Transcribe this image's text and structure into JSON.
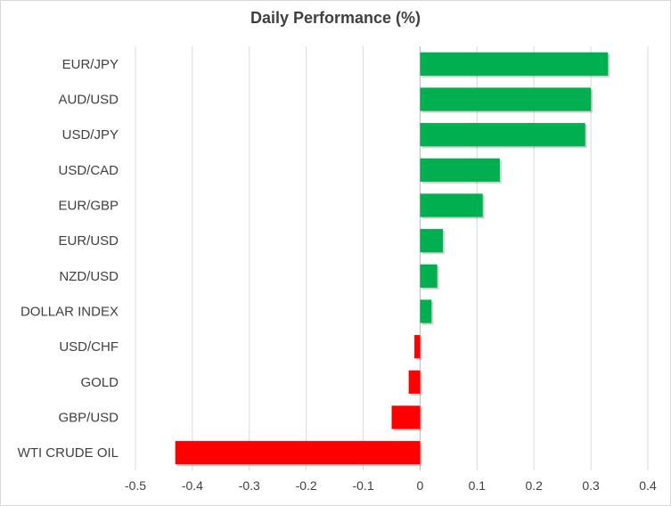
{
  "chart_data": {
    "type": "bar",
    "orientation": "horizontal",
    "title": "Daily Performance (%)",
    "xlabel": "",
    "ylabel": "",
    "categories": [
      "EUR/JPY",
      "AUD/USD",
      "USD/JPY",
      "USD/CAD",
      "EUR/GBP",
      "EUR/USD",
      "NZD/USD",
      "DOLLAR INDEX",
      "USD/CHF",
      "GOLD",
      "GBP/USD",
      "WTI CRUDE OIL"
    ],
    "values": [
      0.33,
      0.3,
      0.29,
      0.14,
      0.11,
      0.04,
      0.03,
      0.02,
      -0.01,
      -0.02,
      -0.05,
      -0.43
    ],
    "xlim": [
      -0.5,
      0.4
    ],
    "x_ticks": [
      "-0.5",
      "-0.4",
      "-0.3",
      "-0.2",
      "-0.1",
      "0",
      "0.1",
      "0.2",
      "0.3",
      "0.4"
    ],
    "grid": "vertical",
    "colors": {
      "positive": "#00b050",
      "negative": "#ff0000",
      "grid": "#d9d9d9",
      "text": "#404040"
    }
  }
}
